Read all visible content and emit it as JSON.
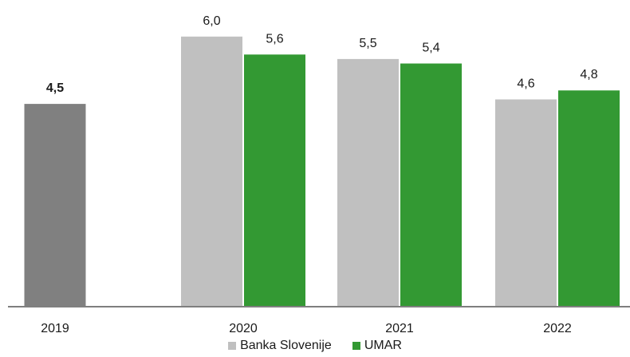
{
  "chart_data": {
    "type": "bar",
    "categories": [
      "2019",
      "2020",
      "2021",
      "2022"
    ],
    "ylim": [
      0,
      6.5
    ],
    "grid": false,
    "legend_position": "bottom-center",
    "series": [
      {
        "name": "",
        "color": "#808080",
        "values": [
          4.5,
          null,
          null,
          null
        ],
        "labels": [
          "4,5",
          "",
          "",
          ""
        ],
        "label_bold": true
      },
      {
        "name": "Banka Slovenije",
        "color": "#c0c0c0",
        "values": [
          null,
          6.0,
          5.5,
          4.6
        ],
        "labels": [
          "",
          "6,0",
          "5,5",
          "4,6"
        ],
        "label_bold": false
      },
      {
        "name": "UMAR",
        "color": "#339933",
        "values": [
          null,
          5.6,
          5.4,
          4.8
        ],
        "labels": [
          "",
          "5,6",
          "5,4",
          "4,8"
        ],
        "label_bold": false
      }
    ],
    "legend": [
      {
        "label": "Banka Slovenije",
        "color": "#c0c0c0"
      },
      {
        "label": "UMAR",
        "color": "#339933"
      }
    ]
  }
}
